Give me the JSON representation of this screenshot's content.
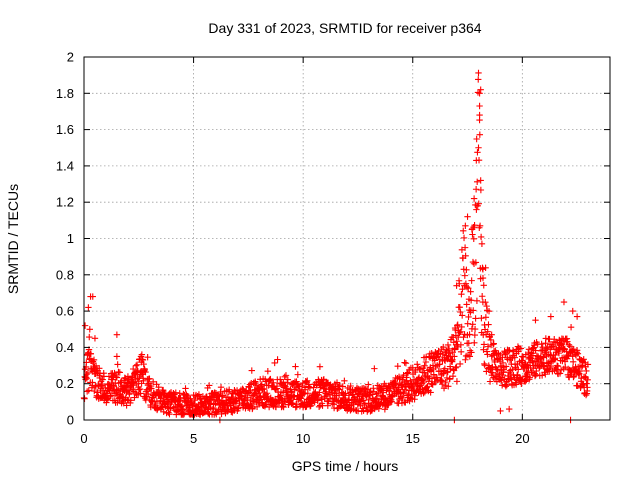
{
  "chart_data": {
    "type": "scatter",
    "title": "Day 331 of 2023, SRMTID for receiver p364",
    "xlabel": "GPS time / hours",
    "ylabel": "SRMTID / TECUs",
    "xlim": [
      0,
      24
    ],
    "ylim": [
      0,
      2
    ],
    "x_ticks": [
      0,
      5,
      10,
      15,
      20
    ],
    "y_ticks": [
      0,
      0.2,
      0.4,
      0.6,
      0.8,
      1,
      1.2,
      1.4,
      1.6,
      1.8,
      2
    ],
    "x_tick_labels": [
      "0",
      "5",
      "10",
      "15",
      "20"
    ],
    "y_tick_labels": [
      "0",
      "0.2",
      "0.4",
      "0.6",
      "0.8",
      "1",
      "1.2",
      "1.4",
      "1.6",
      "1.8",
      "2"
    ],
    "grid": true,
    "marker": "plus",
    "color": "#ff0000",
    "series": [
      {
        "name": "SRMTID",
        "trend": [
          [
            0.0,
            0.2
          ],
          [
            0.3,
            0.3
          ],
          [
            0.6,
            0.2
          ],
          [
            1.0,
            0.17
          ],
          [
            1.5,
            0.18
          ],
          [
            2.0,
            0.16
          ],
          [
            2.6,
            0.25
          ],
          [
            3.0,
            0.15
          ],
          [
            3.5,
            0.11
          ],
          [
            4.0,
            0.09
          ],
          [
            5.0,
            0.08
          ],
          [
            6.0,
            0.09
          ],
          [
            7.0,
            0.11
          ],
          [
            8.0,
            0.15
          ],
          [
            9.0,
            0.15
          ],
          [
            10.0,
            0.14
          ],
          [
            11.0,
            0.15
          ],
          [
            12.0,
            0.12
          ],
          [
            13.0,
            0.11
          ],
          [
            14.0,
            0.14
          ],
          [
            15.0,
            0.2
          ],
          [
            16.0,
            0.28
          ],
          [
            16.6,
            0.3
          ],
          [
            17.0,
            0.4
          ],
          [
            17.3,
            0.7
          ],
          [
            17.6,
            0.5
          ],
          [
            17.9,
            1.0
          ],
          [
            18.0,
            1.3
          ],
          [
            18.2,
            0.6
          ],
          [
            18.5,
            0.35
          ],
          [
            19.0,
            0.28
          ],
          [
            20.0,
            0.3
          ],
          [
            21.0,
            0.35
          ],
          [
            22.0,
            0.35
          ],
          [
            23.0,
            0.22
          ]
        ],
        "values": [
          [
            0.05,
            0.52
          ],
          [
            0.2,
            0.62
          ],
          [
            0.3,
            0.68
          ],
          [
            0.4,
            0.68
          ],
          [
            0.5,
            0.45
          ],
          [
            1.5,
            0.47
          ],
          [
            1.5,
            0.35
          ],
          [
            2.6,
            0.35
          ],
          [
            17.4,
            1.07
          ],
          [
            17.5,
            1.12
          ],
          [
            17.7,
            1.05
          ],
          [
            17.8,
            1.22
          ],
          [
            17.9,
            1.43
          ],
          [
            18.0,
            1.5
          ],
          [
            18.05,
            1.68
          ],
          [
            18.05,
            1.73
          ],
          [
            18.05,
            1.8
          ],
          [
            18.1,
            1.82
          ],
          [
            18.1,
            1.32
          ],
          [
            18.2,
            0.83
          ],
          [
            18.2,
            0.65
          ],
          [
            17.0,
            0.74
          ],
          [
            18.6,
            0.47
          ],
          [
            19.0,
            0.05
          ],
          [
            19.4,
            0.06
          ],
          [
            20.6,
            0.55
          ],
          [
            21.3,
            0.57
          ],
          [
            21.9,
            0.65
          ],
          [
            22.3,
            0.6
          ],
          [
            22.5,
            0.57
          ],
          [
            16.9,
            0.0
          ],
          [
            22.2,
            0.0
          ],
          [
            6.2,
            0.0
          ]
        ]
      }
    ]
  }
}
